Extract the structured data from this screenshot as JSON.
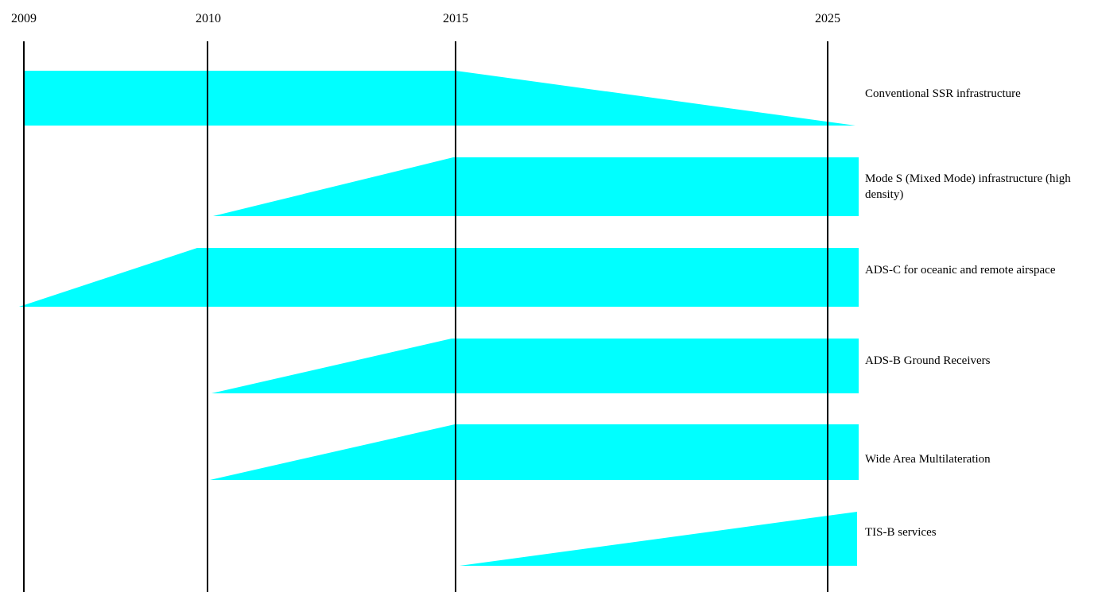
{
  "timeline": {
    "years": [
      "2009",
      "2010",
      "2015",
      "2025"
    ]
  },
  "rows": [
    {
      "label": "Conventional SSR infrastructure"
    },
    {
      "label": "Mode S (Mixed Mode) infrastructure (high density)"
    },
    {
      "label": "ADS-C for oceanic and remote airspace"
    },
    {
      "label": "ADS-B Ground Receivers"
    },
    {
      "label": "Wide Area Multilateration"
    },
    {
      "label": "TIS-B services"
    }
  ],
  "colors": {
    "band": "#00ffff",
    "line": "#000000"
  }
}
